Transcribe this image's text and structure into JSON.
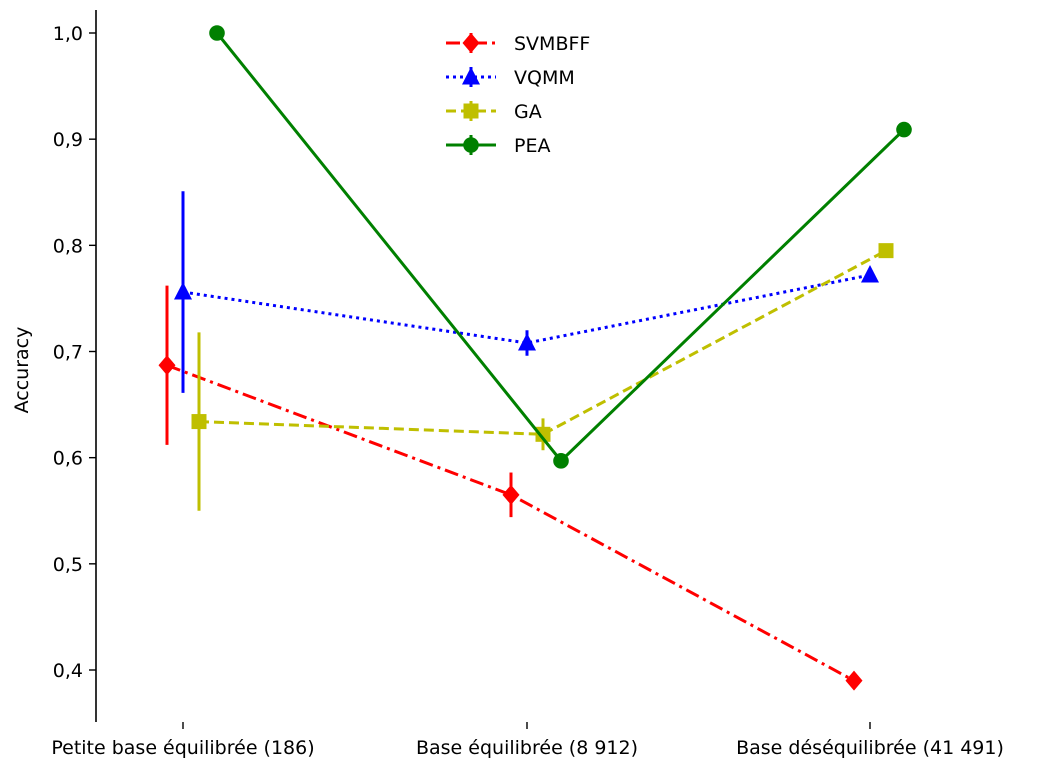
{
  "chart_data": {
    "type": "line",
    "title": "",
    "xlabel": "",
    "ylabel": "Accuracy",
    "ylim": [
      0.35,
      1.02
    ],
    "grid": false,
    "legend_position": "top-center",
    "categories": [
      "Petite base équilibrée (186)",
      "Base équilibrée (8 912)",
      "Base déséquilibrée (41 491)"
    ],
    "y_ticks": [
      0.4,
      0.5,
      0.6,
      0.7,
      0.8,
      0.9,
      1.0
    ],
    "y_tick_labels": [
      "0,4",
      "0,5",
      "0,6",
      "0,7",
      "0,8",
      "0,9",
      "1,0"
    ],
    "series": [
      {
        "name": "SVMBFF",
        "color": "#ff0000",
        "marker": "diamond",
        "line_style": "dashdot",
        "values": [
          0.687,
          0.565,
          0.39
        ],
        "errors": [
          0.075,
          0.021,
          0.0
        ]
      },
      {
        "name": "VQMM",
        "color": "#0000ff",
        "marker": "triangle",
        "line_style": "dotted",
        "values": [
          0.756,
          0.708,
          0.772
        ],
        "errors": [
          0.095,
          0.012,
          0.0
        ]
      },
      {
        "name": "GA",
        "color": "#bfbf00",
        "marker": "square",
        "line_style": "dashed",
        "values": [
          0.634,
          0.622,
          0.795
        ],
        "errors": [
          0.084,
          0.015,
          0.0
        ]
      },
      {
        "name": "PEA",
        "color": "#008000",
        "marker": "circle",
        "line_style": "solid",
        "values": [
          1.0,
          0.597,
          0.909
        ],
        "errors": [
          0.0,
          0.0,
          0.0
        ]
      }
    ]
  }
}
